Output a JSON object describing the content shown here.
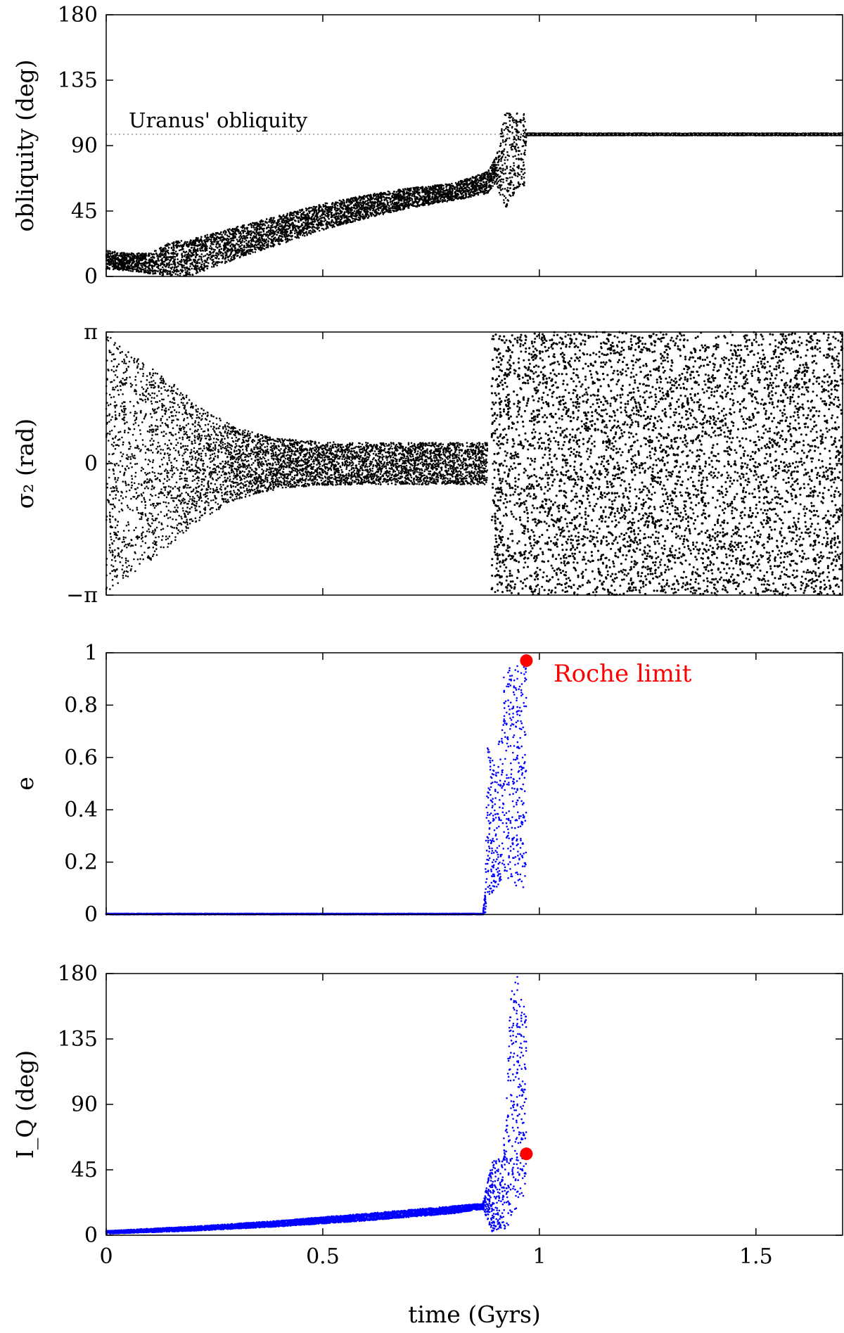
{
  "colors": {
    "black_series": "#000000",
    "blue_series": "#0000ff",
    "roche_marker": "#ff0000",
    "reference_line": "#999999"
  },
  "x_axis": {
    "label": "time (Gyrs)",
    "ticks": [
      0,
      0.5,
      1,
      1.5
    ],
    "tick_labels": [
      "0",
      "0.5",
      "1",
      "1.5"
    ],
    "xlim": [
      0,
      1.7
    ]
  },
  "chart_data": [
    {
      "id": "obliquity",
      "type": "scatter",
      "ylabel": "obliquity (deg)",
      "ylim": [
        0,
        180
      ],
      "yticks": [
        0,
        45,
        90,
        135,
        180
      ],
      "ytick_labels": [
        "0",
        "45",
        "90",
        "135",
        "180"
      ],
      "reference_line": {
        "y": 97.8,
        "label": "Uranus' obliquity",
        "style": "dotted"
      },
      "envelope": {
        "x": [
          0,
          0.05,
          0.1,
          0.15,
          0.2,
          0.3,
          0.4,
          0.5,
          0.6,
          0.7,
          0.8,
          0.88,
          0.9,
          0.92,
          0.95,
          0.965,
          0.97,
          1.0,
          1.7
        ],
        "y_low": [
          5,
          4,
          2,
          0,
          1,
          12,
          22,
          32,
          40,
          47,
          52,
          57,
          65,
          45,
          60,
          62,
          97,
          97,
          97
        ],
        "y_high": [
          18,
          16,
          16,
          24,
          26,
          34,
          42,
          50,
          56,
          61,
          64,
          72,
          82,
          112,
          114,
          112,
          98.5,
          98.5,
          98.5
        ]
      }
    },
    {
      "id": "sigma2",
      "type": "scatter",
      "ylabel": "σ₂ (rad)",
      "ylim": [
        -3.14159,
        3.14159
      ],
      "yticks": [
        -3.14159,
        0,
        3.14159
      ],
      "ytick_labels": [
        "−π",
        "0",
        "π"
      ],
      "envelope": {
        "x": [
          0,
          0.18,
          0.2,
          0.3,
          0.4,
          0.5,
          0.6,
          0.7,
          0.8,
          0.88
        ],
        "y_low": [
          -3.14,
          -1.7,
          -1.45,
          -0.85,
          -0.6,
          -0.52,
          -0.5,
          -0.5,
          -0.5,
          -0.5
        ],
        "y_high": [
          3.14,
          1.7,
          1.45,
          0.85,
          0.6,
          0.52,
          0.5,
          0.5,
          0.5,
          0.5
        ]
      },
      "chaotic_region": {
        "x_start": 0.89,
        "x_end": 1.7,
        "y_low": -3.14159,
        "y_high": 3.14159
      }
    },
    {
      "id": "eccentricity",
      "type": "scatter",
      "ylabel": "e",
      "ylim": [
        0,
        1
      ],
      "yticks": [
        0,
        0.2,
        0.4,
        0.6,
        0.8,
        1
      ],
      "ytick_labels": [
        "0",
        "0.2",
        "0.4",
        "0.6",
        "0.8",
        "1"
      ],
      "envelope": {
        "x": [
          0,
          0.87,
          0.875,
          0.88,
          0.9,
          0.92,
          0.95,
          0.97
        ],
        "y_low": [
          0,
          0,
          0,
          0.05,
          0.1,
          0.15,
          0.1,
          0.1
        ],
        "y_high": [
          0.003,
          0.003,
          0.1,
          0.65,
          0.55,
          0.95,
          0.95,
          0.95
        ]
      },
      "roche_point": {
        "x": 0.97,
        "y": 0.97,
        "label": "Roche limit"
      }
    },
    {
      "id": "inclination",
      "type": "scatter",
      "ylabel": "I_Q (deg)",
      "ylim": [
        0,
        180
      ],
      "yticks": [
        0,
        45,
        90,
        135,
        180
      ],
      "ytick_labels": [
        "0",
        "45",
        "90",
        "135",
        "180"
      ],
      "envelope": {
        "x": [
          0,
          0.2,
          0.4,
          0.6,
          0.8,
          0.87,
          0.89,
          0.91,
          0.92,
          0.935,
          0.95,
          0.97
        ],
        "y_low": [
          1,
          3,
          6,
          10,
          15,
          18,
          2,
          5,
          3,
          10,
          20,
          30
        ],
        "y_high": [
          3,
          6,
          10,
          15,
          20,
          22,
          50,
          55,
          70,
          175,
          178,
          150
        ]
      },
      "roche_point": {
        "x": 0.97,
        "y": 56
      }
    }
  ]
}
